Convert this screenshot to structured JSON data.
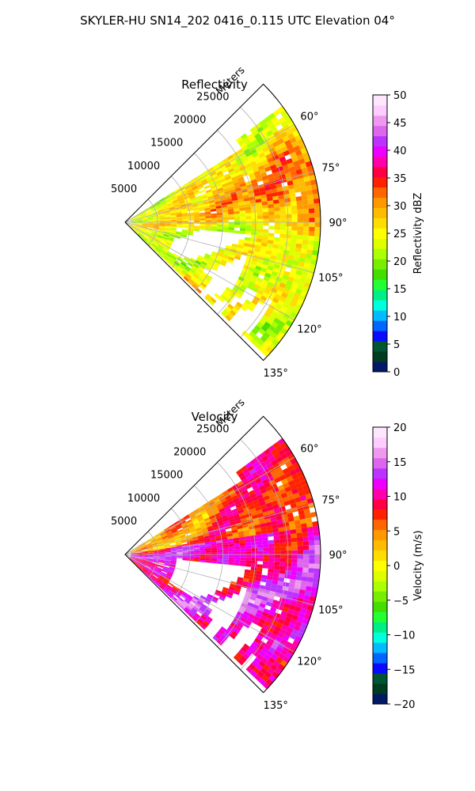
{
  "suptitle": "SKYLER-HU  SN14_202  0416_0.115 UTC Elevation 04°",
  "chart_data": [
    {
      "type": "heatmap",
      "projection": "polar-sector",
      "title": "Reflectivity",
      "radial_label": "Meters",
      "radial_ticks": [
        "5000",
        "10000",
        "15000",
        "20000",
        "25000"
      ],
      "radial_tick_values": [
        5000,
        10000,
        15000,
        20000,
        25000
      ],
      "r_max": 30000,
      "theta_ticks": [
        "60°",
        "75°",
        "90°",
        "105°",
        "120°",
        "135°"
      ],
      "theta_tick_values": [
        60,
        75,
        90,
        105,
        120,
        135
      ],
      "theta_range": [
        45,
        135
      ],
      "colorbar": {
        "label": "Reflectivity dBZ",
        "ticks": [
          "0",
          "5",
          "10",
          "15",
          "20",
          "25",
          "30",
          "35",
          "40",
          "45",
          "50"
        ],
        "range": [
          0,
          50
        ],
        "colors": [
          "#001a66",
          "#003d1f",
          "#005533",
          "#0a0aff",
          "#0066ff",
          "#00bbff",
          "#00ffdd",
          "#00ee88",
          "#22ff33",
          "#44dd00",
          "#77ee00",
          "#aaff00",
          "#ddff00",
          "#ffff00",
          "#ffdd00",
          "#ffbb00",
          "#ff9900",
          "#ff6600",
          "#ff2200",
          "#ff0044",
          "#ff00aa",
          "#ee00ff",
          "#bb33ff",
          "#dd66ee",
          "#ee99ee",
          "#ffccff",
          "#ffe6ff"
        ]
      }
    },
    {
      "type": "heatmap",
      "projection": "polar-sector",
      "title": "Velocity",
      "radial_label": "Meters",
      "radial_ticks": [
        "5000",
        "10000",
        "15000",
        "20000",
        "25000"
      ],
      "radial_tick_values": [
        5000,
        10000,
        15000,
        20000,
        25000
      ],
      "r_max": 30000,
      "theta_ticks": [
        "60°",
        "75°",
        "90°",
        "105°",
        "120°",
        "135°"
      ],
      "theta_tick_values": [
        60,
        75,
        90,
        105,
        120,
        135
      ],
      "theta_range": [
        45,
        135
      ],
      "colorbar": {
        "label": "Velocity (m/s)",
        "ticks": [
          "−20",
          "−15",
          "−10",
          "−5",
          "0",
          "5",
          "10",
          "15",
          "20"
        ],
        "range": [
          -20,
          20
        ],
        "colors": [
          "#001a66",
          "#003d1f",
          "#005533",
          "#0a0aff",
          "#0066ff",
          "#00bbff",
          "#00ffdd",
          "#00ee88",
          "#22ff33",
          "#44dd00",
          "#77ee00",
          "#aaff00",
          "#ddff00",
          "#ffff00",
          "#ffdd00",
          "#ffbb00",
          "#ff9900",
          "#ff6600",
          "#ff2200",
          "#ff0044",
          "#ff00aa",
          "#ee00ff",
          "#bb33ff",
          "#dd66ee",
          "#ee99ee",
          "#ffccff",
          "#ffe6ff"
        ]
      }
    }
  ]
}
